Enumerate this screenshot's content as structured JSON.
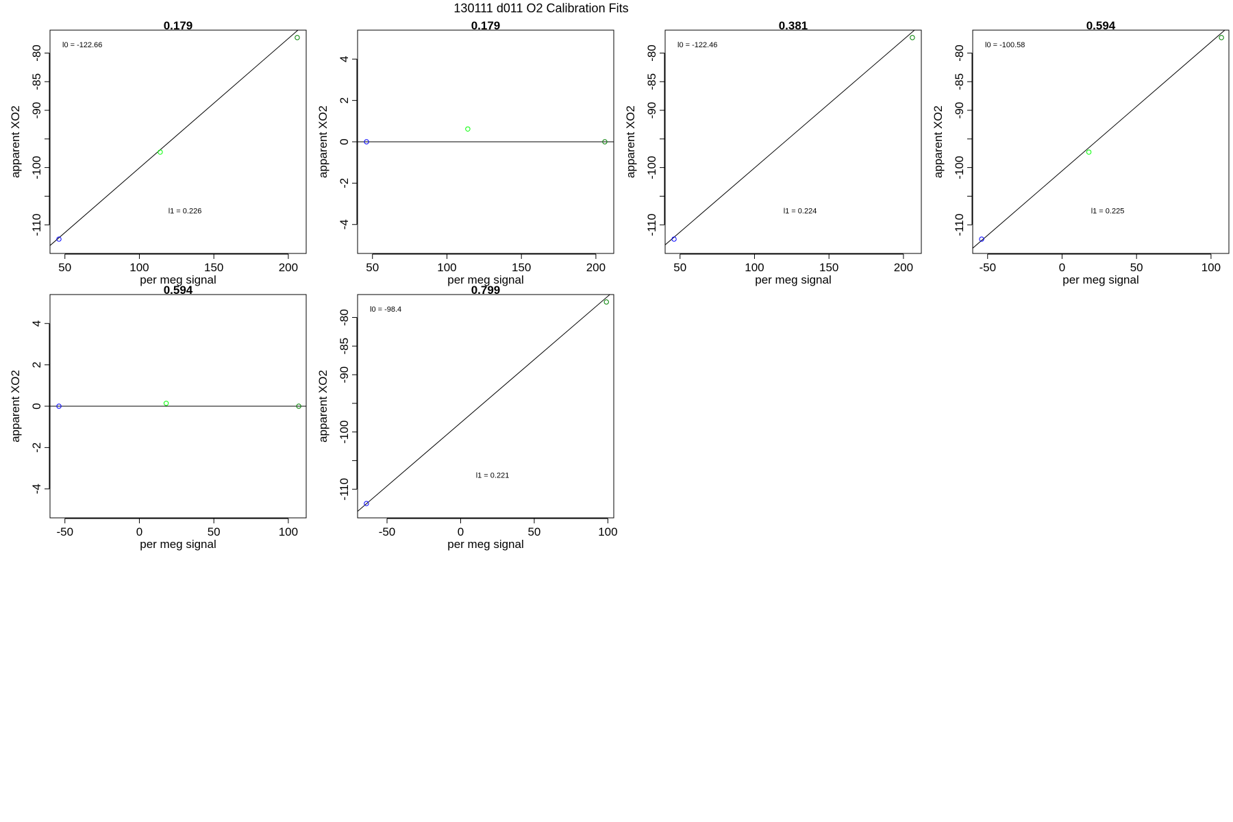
{
  "figure": {
    "title": "130111   d011   O2 Calibration Fits"
  },
  "colors": {
    "frame": "#000000",
    "fit_line": "#000000",
    "point_blue": "#0000ff",
    "point_green_light": "#00ff00",
    "point_green_dark": "#008000"
  },
  "chart_data": [
    {
      "type": "scatter",
      "title": "0.179",
      "xlabel": "per meg signal",
      "ylabel": "apparent XO2",
      "xlim": [
        40,
        212
      ],
      "ylim": [
        -115,
        -76
      ],
      "xticks": [
        50,
        100,
        150,
        200
      ],
      "yticks": [
        -80,
        -85,
        -90,
        -95,
        -100,
        -105,
        -110
      ],
      "ytick_labels": [
        "-80",
        "-85",
        "-90",
        "",
        "-100",
        "",
        "-110"
      ],
      "points": [
        {
          "x": 46,
          "y": -112.5,
          "color": "blue"
        },
        {
          "x": 114,
          "y": -97.3,
          "color": "light-green"
        },
        {
          "x": 206,
          "y": -77.3,
          "color": "dark-green"
        }
      ],
      "fit_line": {
        "intercept": -122.66,
        "slope": 0.226
      },
      "annotations": [
        {
          "text": "l0 =  -122.66",
          "pos": "top-left"
        },
        {
          "text": "l1 =  0.226",
          "pos": "lower-middle"
        }
      ]
    },
    {
      "type": "scatter",
      "title": "0.179",
      "xlabel": "per meg signal",
      "ylabel": "apparent XO2",
      "xlim": [
        40,
        212
      ],
      "ylim": [
        -5.4,
        5.4
      ],
      "xticks": [
        50,
        100,
        150,
        200
      ],
      "yticks": [
        4,
        2,
        0,
        -2,
        -4
      ],
      "ytick_labels": [
        "4",
        "2",
        "0",
        "-2",
        "-4"
      ],
      "points": [
        {
          "x": 46,
          "y": 0,
          "color": "blue"
        },
        {
          "x": 114,
          "y": 0.62,
          "color": "light-green"
        },
        {
          "x": 206,
          "y": 0,
          "color": "dark-green"
        }
      ],
      "fit_line": {
        "intercept": 0,
        "slope": 0
      },
      "annotations": []
    },
    {
      "type": "scatter",
      "title": "0.381",
      "xlabel": "per meg signal",
      "ylabel": "apparent XO2",
      "xlim": [
        40,
        212
      ],
      "ylim": [
        -115,
        -76
      ],
      "xticks": [
        50,
        100,
        150,
        200
      ],
      "yticks": [
        -80,
        -85,
        -90,
        -95,
        -100,
        -105,
        -110
      ],
      "ytick_labels": [
        "-80",
        "-85",
        "-90",
        "",
        "-100",
        "",
        "-110"
      ],
      "points": [
        {
          "x": 46,
          "y": -112.5,
          "color": "blue"
        },
        {
          "x": 206,
          "y": -77.3,
          "color": "dark-green"
        }
      ],
      "fit_line": {
        "intercept": -122.46,
        "slope": 0.224
      },
      "annotations": [
        {
          "text": "l0 =  -122.46",
          "pos": "top-left"
        },
        {
          "text": "l1 =  0.224",
          "pos": "lower-middle"
        }
      ]
    },
    {
      "type": "scatter",
      "title": "0.594",
      "xlabel": "per meg signal",
      "ylabel": "apparent XO2",
      "xlim": [
        -60,
        112
      ],
      "ylim": [
        -115,
        -76
      ],
      "xticks": [
        -50,
        0,
        50,
        100
      ],
      "yticks": [
        -80,
        -85,
        -90,
        -95,
        -100,
        -105,
        -110
      ],
      "ytick_labels": [
        "-80",
        "-85",
        "-90",
        "",
        "-100",
        "",
        "-110"
      ],
      "points": [
        {
          "x": -54,
          "y": -112.5,
          "color": "blue"
        },
        {
          "x": 18,
          "y": -97.3,
          "color": "light-green"
        },
        {
          "x": 107,
          "y": -77.3,
          "color": "dark-green"
        }
      ],
      "fit_line": {
        "intercept": -100.58,
        "slope": 0.225
      },
      "annotations": [
        {
          "text": "l0 =  -100.58",
          "pos": "top-left"
        },
        {
          "text": "l1 =  0.225",
          "pos": "lower-middle"
        }
      ]
    },
    {
      "type": "scatter",
      "title": "0.594",
      "xlabel": "per meg signal",
      "ylabel": "apparent XO2",
      "xlim": [
        -60,
        112
      ],
      "ylim": [
        -5.4,
        5.4
      ],
      "xticks": [
        -50,
        0,
        50,
        100
      ],
      "yticks": [
        4,
        2,
        0,
        -2,
        -4
      ],
      "ytick_labels": [
        "4",
        "2",
        "0",
        "-2",
        "-4"
      ],
      "points": [
        {
          "x": -54,
          "y": 0,
          "color": "blue"
        },
        {
          "x": 18,
          "y": 0.14,
          "color": "light-green"
        },
        {
          "x": 107,
          "y": 0,
          "color": "dark-green"
        }
      ],
      "fit_line": {
        "intercept": 0,
        "slope": 0
      },
      "annotations": []
    },
    {
      "type": "scatter",
      "title": "0.799",
      "xlabel": "per meg signal",
      "ylabel": "apparent XO2",
      "xlim": [
        -70,
        104
      ],
      "ylim": [
        -115,
        -76
      ],
      "xticks": [
        -50,
        0,
        50,
        100
      ],
      "yticks": [
        -80,
        -85,
        -90,
        -95,
        -100,
        -105,
        -110
      ],
      "ytick_labels": [
        "-80",
        "-85",
        "-90",
        "",
        "-100",
        "",
        "-110"
      ],
      "points": [
        {
          "x": -64,
          "y": -112.5,
          "color": "blue"
        },
        {
          "x": 99,
          "y": -77.3,
          "color": "dark-green"
        }
      ],
      "fit_line": {
        "intercept": -98.4,
        "slope": 0.221
      },
      "annotations": [
        {
          "text": "l0 =  -98.4",
          "pos": "top-left"
        },
        {
          "text": "l1 =  0.221",
          "pos": "lower-middle"
        }
      ]
    }
  ]
}
